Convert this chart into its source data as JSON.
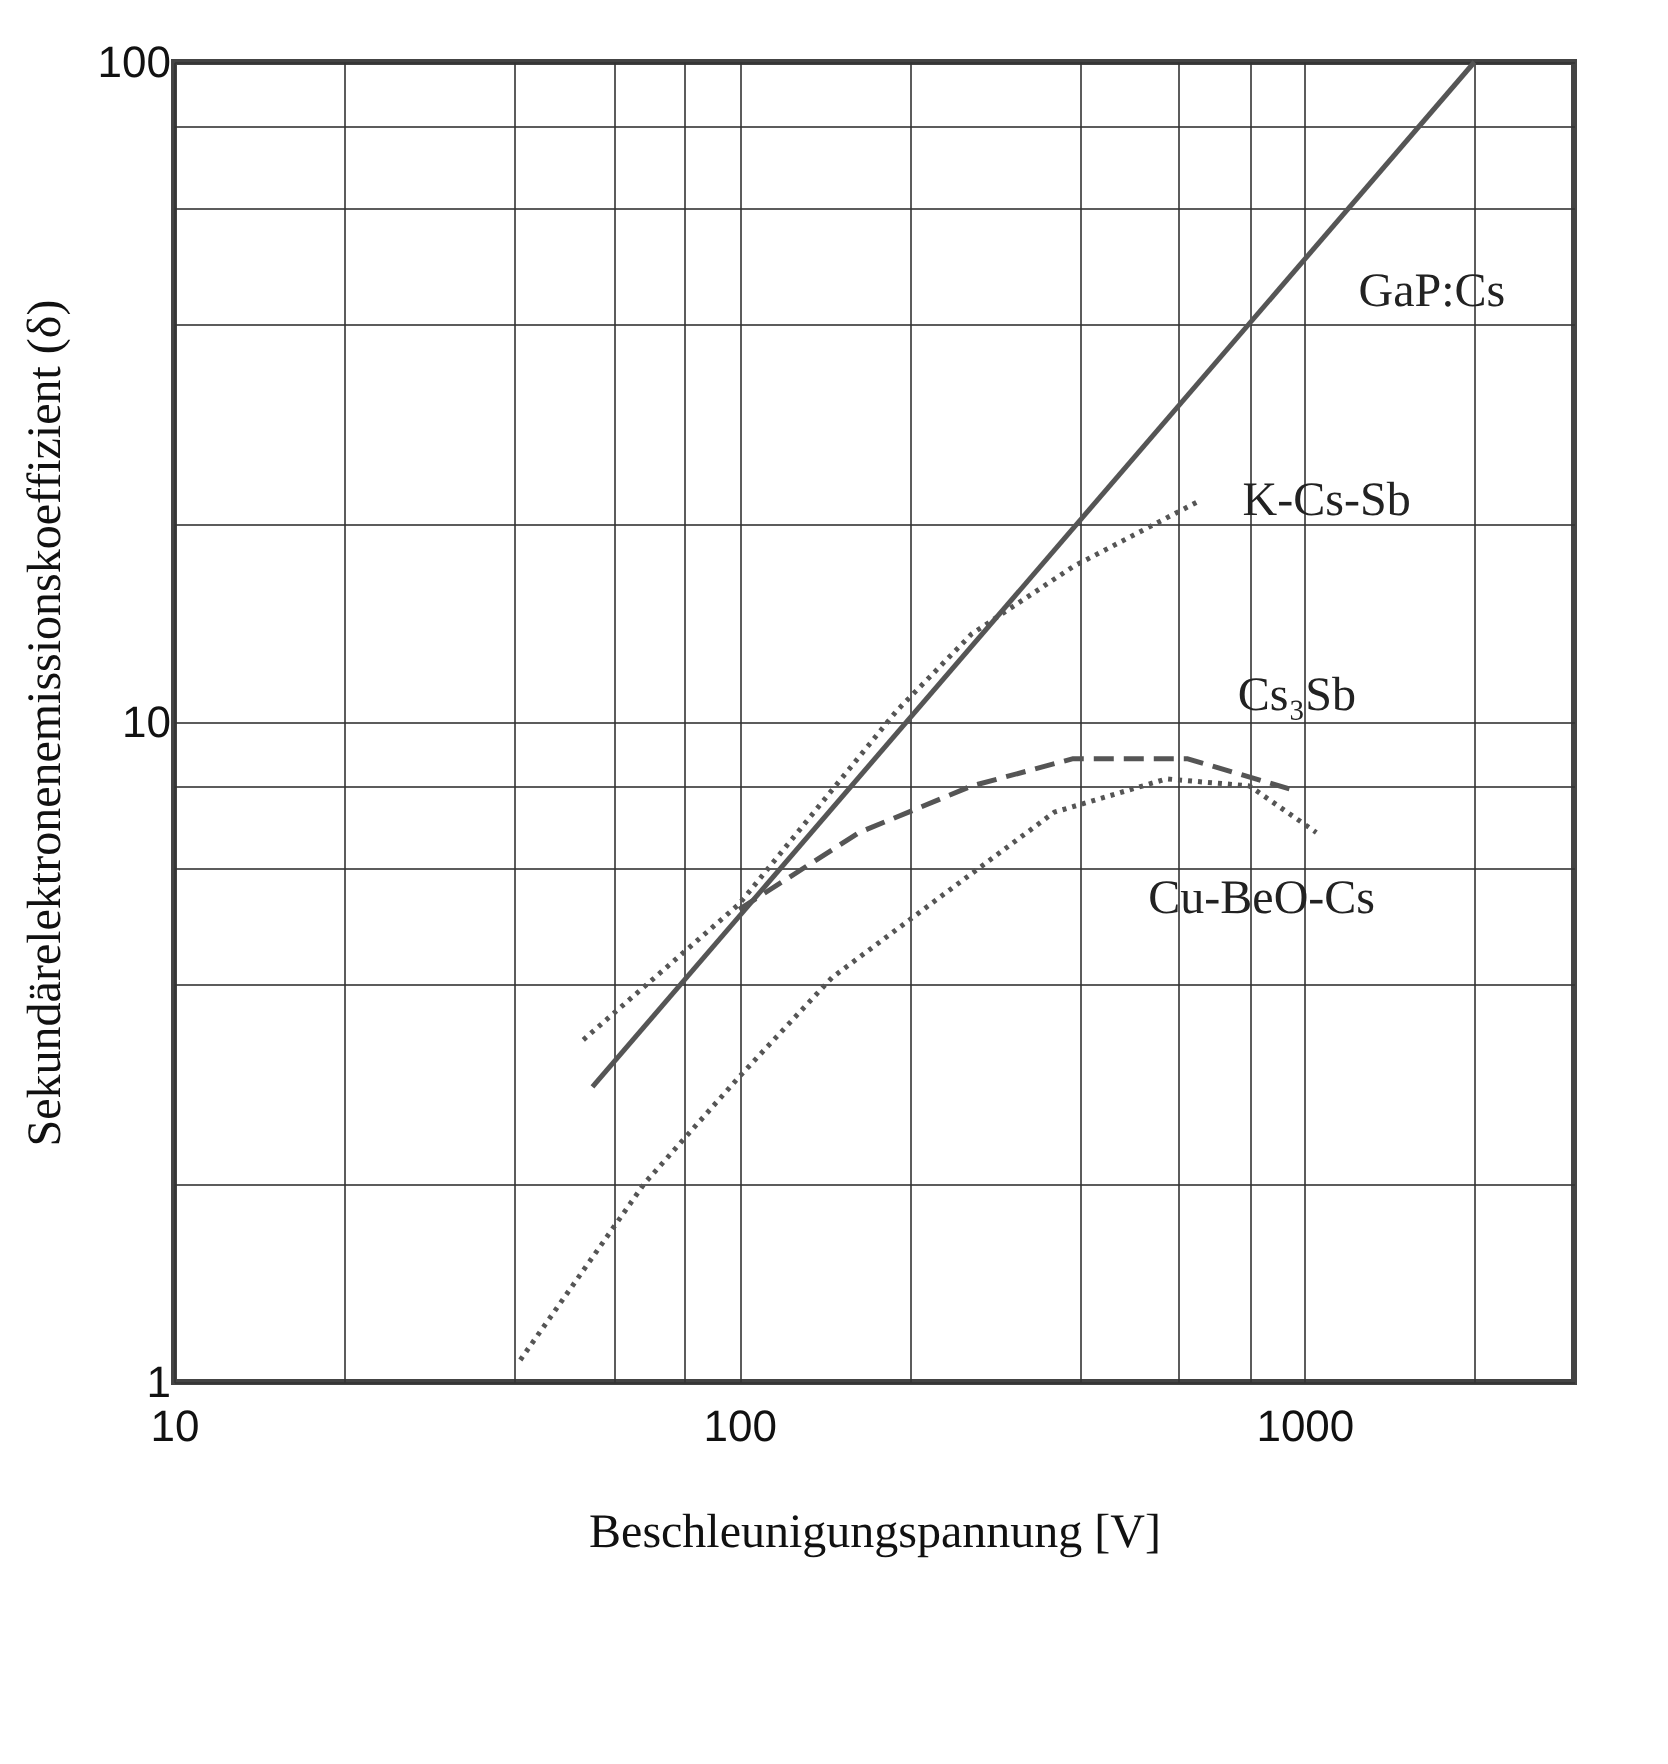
{
  "chart_data": {
    "type": "line",
    "xlabel": "Beschleunigungspannung [V]",
    "ylabel": "Sekundärelektronenemissionskoeffizient (δ)",
    "log": "xy",
    "grid": true,
    "legend": false,
    "marker": "none",
    "xlim": [
      10,
      3000
    ],
    "ylim": [
      1,
      100
    ],
    "xticks": [
      10,
      {
        "value": 20,
        "label": null
      },
      {
        "value": 40,
        "label": null
      },
      {
        "value": 60,
        "label": null
      },
      {
        "value": 80,
        "label": null
      },
      100,
      {
        "value": 200,
        "label": null
      },
      {
        "value": 400,
        "label": null
      },
      {
        "value": 600,
        "label": null
      },
      {
        "value": 800,
        "label": null
      },
      1000,
      {
        "value": 2000,
        "label": null
      }
    ],
    "yticks": [
      1,
      {
        "value": 2,
        "label": null
      },
      {
        "value": 4,
        "label": null
      },
      {
        "value": 6,
        "label": null
      },
      {
        "value": 8,
        "label": null
      },
      10,
      {
        "value": 20,
        "label": null
      },
      {
        "value": 40,
        "label": null
      },
      {
        "value": 60,
        "label": null
      },
      {
        "value": 80,
        "label": null
      },
      100
    ],
    "series": [
      {
        "name": "GaP:Cs",
        "color": "#555555",
        "line_style": "solid",
        "x": [
          55,
          2000
        ],
        "values": [
          2.8,
          100
        ]
      },
      {
        "name": "K-Cs-Sb",
        "color": "#555555",
        "line_style": "dotted",
        "x": [
          53,
          100,
          190,
          258,
          390,
          650
        ],
        "values": [
          3.3,
          5.3,
          10.4,
          13.6,
          17.2,
          21.6
        ]
      },
      {
        "name": "Cs₃Sb",
        "color": "#555555",
        "line_style": "dashed",
        "x": [
          100,
          163,
          258,
          390,
          620,
          950
        ],
        "values": [
          5.2,
          6.8,
          8.0,
          8.8,
          8.8,
          7.9
        ]
      },
      {
        "name": "Cu-BeO-Cs",
        "color": "#555555",
        "line_style": "dotted",
        "x": [
          41,
          68,
          100,
          146,
          238,
          361,
          570,
          800,
          1050
        ],
        "values": [
          1.08,
          2.0,
          2.9,
          4.1,
          5.6,
          7.3,
          8.2,
          8.0,
          6.8
        ]
      }
    ]
  }
}
